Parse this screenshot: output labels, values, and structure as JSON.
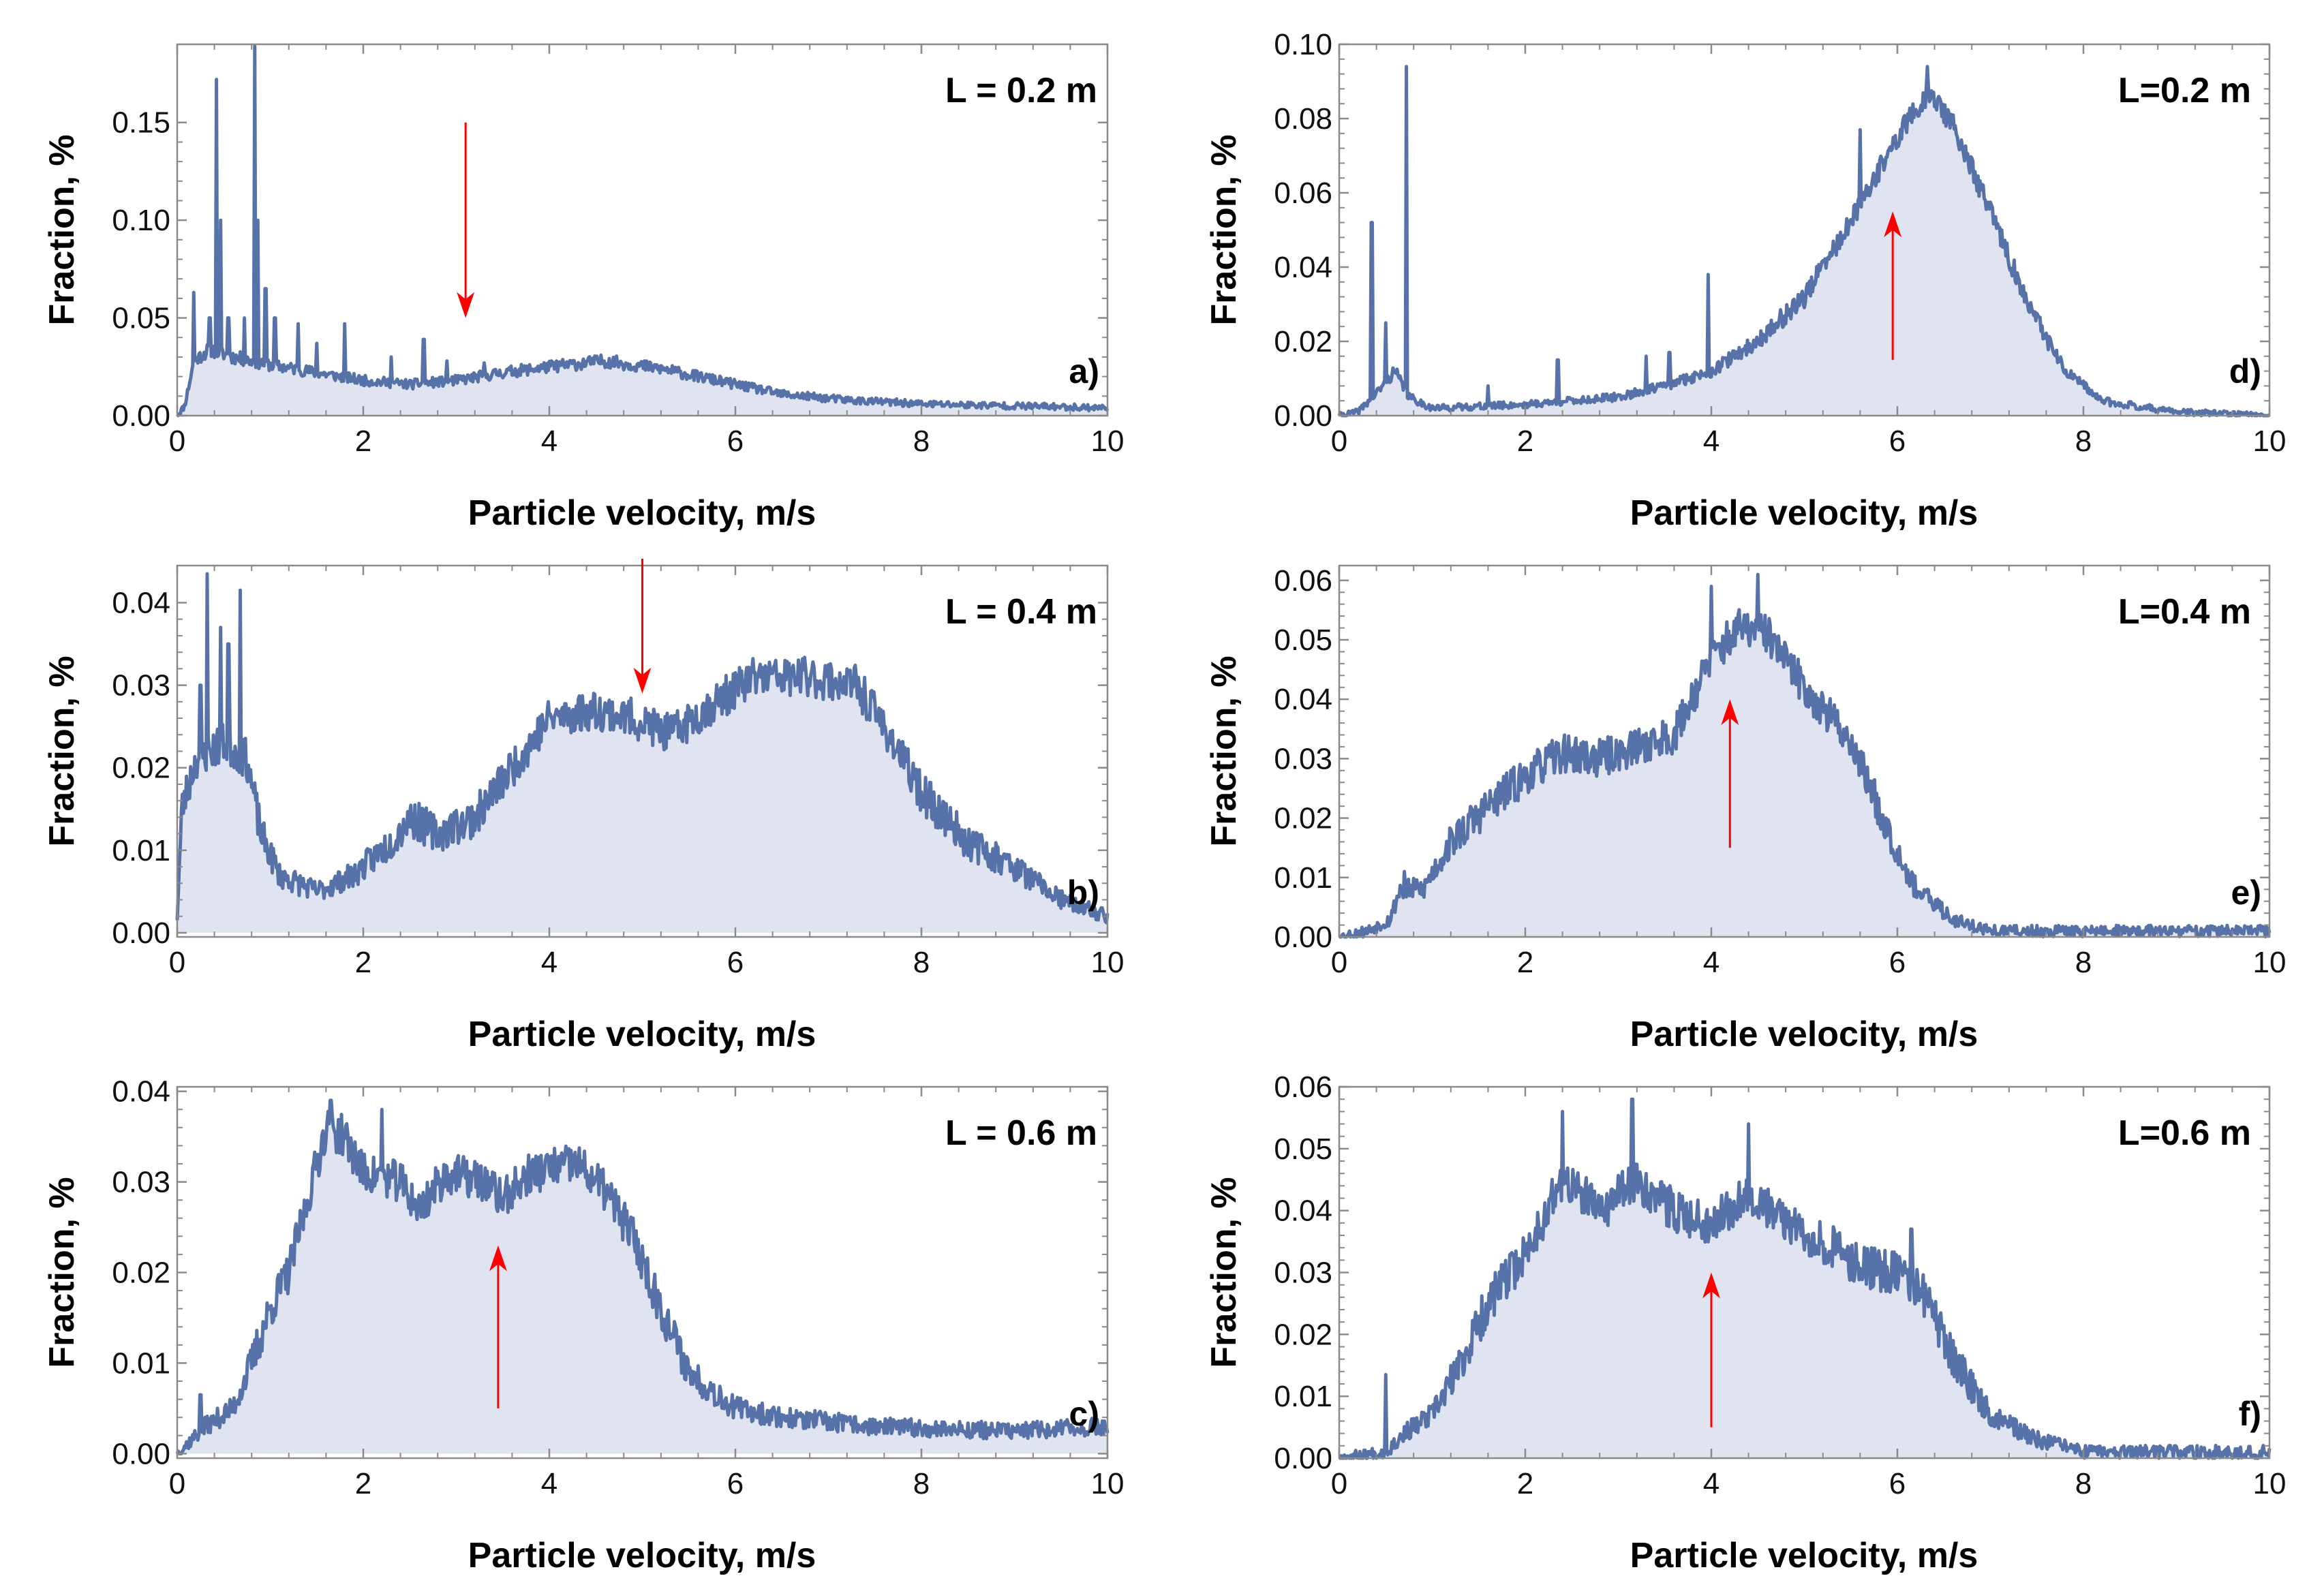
{
  "figure": {
    "description_free": true,
    "colors": {
      "line": "#5672a8",
      "fill": "#dfe4f0",
      "arrow": "#ff0000",
      "frame": "#8a8a8a"
    }
  },
  "chart_data": [
    {
      "id": "a",
      "type": "area",
      "title": "L = 0.2 m",
      "tag": "a)",
      "xlabel": "Particle velocity, m/s",
      "ylabel": "Fraction, %",
      "xlim": [
        0,
        10
      ],
      "ylim": [
        0,
        0.19
      ],
      "xticks": [
        0,
        2,
        4,
        6,
        8,
        10
      ],
      "yticks": [
        0.0,
        0.05,
        0.1,
        0.15
      ],
      "ytick_labels": [
        "0.00",
        "0.05",
        "0.10",
        "0.15"
      ],
      "arrow": {
        "x": 3.1,
        "from_y": 0.15,
        "to_y": 0.05,
        "direction": "down"
      },
      "profile": [
        [
          0,
          0
        ],
        [
          0.08,
          0.005
        ],
        [
          0.18,
          0.028
        ],
        [
          0.35,
          0.034
        ],
        [
          0.6,
          0.03
        ],
        [
          1.0,
          0.026
        ],
        [
          1.5,
          0.022
        ],
        [
          2.0,
          0.018
        ],
        [
          2.5,
          0.016
        ],
        [
          3.0,
          0.018
        ],
        [
          3.5,
          0.022
        ],
        [
          4.0,
          0.025
        ],
        [
          4.6,
          0.028
        ],
        [
          5.2,
          0.024
        ],
        [
          5.8,
          0.018
        ],
        [
          6.5,
          0.011
        ],
        [
          7.2,
          0.008
        ],
        [
          8.0,
          0.006
        ],
        [
          9.0,
          0.005
        ],
        [
          10.0,
          0.004
        ]
      ],
      "spikes": [
        [
          0.18,
          0.063
        ],
        [
          0.35,
          0.05
        ],
        [
          0.42,
          0.172
        ],
        [
          0.47,
          0.1
        ],
        [
          0.55,
          0.05
        ],
        [
          0.72,
          0.05
        ],
        [
          0.83,
          0.189
        ],
        [
          0.87,
          0.1
        ],
        [
          0.95,
          0.065
        ],
        [
          1.05,
          0.05
        ],
        [
          1.3,
          0.047
        ],
        [
          1.5,
          0.037
        ],
        [
          1.8,
          0.047
        ],
        [
          2.3,
          0.03
        ],
        [
          2.65,
          0.039
        ],
        [
          2.9,
          0.028
        ],
        [
          3.3,
          0.027
        ]
      ],
      "noise": 0.004,
      "seed": 11
    },
    {
      "id": "b",
      "type": "area",
      "title": "L = 0.4 m",
      "tag": "b)",
      "xlabel": "Particle velocity, m/s",
      "ylabel": "Fraction, %",
      "xlim": [
        0,
        10
      ],
      "ylim": [
        -0.0005,
        0.0445
      ],
      "xticks": [
        0,
        2,
        4,
        6,
        8,
        10
      ],
      "yticks": [
        0.0,
        0.01,
        0.02,
        0.03,
        0.04
      ],
      "ytick_labels": [
        "0.00",
        "0.01",
        "0.02",
        "0.03",
        "0.04"
      ],
      "arrow": {
        "x": 5.0,
        "from_y": 0.046,
        "to_y": 0.029,
        "direction": "down"
      },
      "profile": [
        [
          0,
          0.002
        ],
        [
          0.05,
          0.015
        ],
        [
          0.2,
          0.021
        ],
        [
          0.5,
          0.023
        ],
        [
          0.75,
          0.021
        ],
        [
          0.9,
          0.012
        ],
        [
          1.1,
          0.007
        ],
        [
          1.5,
          0.005
        ],
        [
          1.9,
          0.007
        ],
        [
          2.3,
          0.011
        ],
        [
          2.5,
          0.014
        ],
        [
          2.8,
          0.012
        ],
        [
          3.2,
          0.014
        ],
        [
          3.6,
          0.02
        ],
        [
          4.0,
          0.026
        ],
        [
          4.5,
          0.027
        ],
        [
          4.9,
          0.026
        ],
        [
          5.3,
          0.024
        ],
        [
          5.8,
          0.028
        ],
        [
          6.2,
          0.031
        ],
        [
          6.8,
          0.031
        ],
        [
          7.3,
          0.03
        ],
        [
          7.6,
          0.025
        ],
        [
          8.0,
          0.017
        ],
        [
          8.5,
          0.011
        ],
        [
          9.0,
          0.008
        ],
        [
          9.5,
          0.004
        ],
        [
          10.0,
          0.002
        ]
      ],
      "spikes": [
        [
          0.32,
          0.0435
        ],
        [
          0.47,
          0.037
        ],
        [
          0.55,
          0.035
        ],
        [
          0.68,
          0.0415
        ],
        [
          0.25,
          0.03
        ]
      ],
      "noise": 0.0018,
      "seed": 23
    },
    {
      "id": "c",
      "type": "area",
      "title": "L = 0.6 m",
      "tag": "c)",
      "xlabel": "Particle velocity, m/s",
      "ylabel": "Fraction, %",
      "xlim": [
        0,
        10
      ],
      "ylim": [
        -0.0005,
        0.0405
      ],
      "xticks": [
        0,
        2,
        4,
        6,
        8,
        10
      ],
      "yticks": [
        0.0,
        0.01,
        0.02,
        0.03,
        0.04
      ],
      "ytick_labels": [
        "0.00",
        "0.01",
        "0.02",
        "0.03",
        "0.04"
      ],
      "arrow": {
        "x": 3.45,
        "from_y": 0.005,
        "to_y": 0.023,
        "direction": "up"
      },
      "profile": [
        [
          0,
          0.0
        ],
        [
          0.3,
          0.003
        ],
        [
          0.6,
          0.005
        ],
        [
          0.8,
          0.01
        ],
        [
          1.0,
          0.016
        ],
        [
          1.2,
          0.02
        ],
        [
          1.4,
          0.028
        ],
        [
          1.6,
          0.036
        ],
        [
          1.8,
          0.035
        ],
        [
          2.0,
          0.031
        ],
        [
          2.4,
          0.03
        ],
        [
          2.6,
          0.027
        ],
        [
          2.9,
          0.031
        ],
        [
          3.3,
          0.03
        ],
        [
          3.5,
          0.028
        ],
        [
          3.8,
          0.031
        ],
        [
          4.3,
          0.032
        ],
        [
          4.6,
          0.029
        ],
        [
          4.9,
          0.024
        ],
        [
          5.2,
          0.016
        ],
        [
          5.5,
          0.009
        ],
        [
          6.0,
          0.005
        ],
        [
          6.5,
          0.004
        ],
        [
          7.5,
          0.003
        ],
        [
          9.0,
          0.0025
        ],
        [
          10.0,
          0.003
        ]
      ],
      "spikes": [
        [
          0.25,
          0.0065
        ],
        [
          2.2,
          0.038
        ],
        [
          1.65,
          0.039
        ]
      ],
      "noise": 0.0017,
      "seed": 37
    },
    {
      "id": "d",
      "type": "area",
      "title": "L=0.2 m",
      "tag": "d)",
      "xlabel": "Particle velocity, m/s",
      "ylabel": "Fraction, %",
      "xlim": [
        0,
        10
      ],
      "ylim": [
        0,
        0.1
      ],
      "xticks": [
        0,
        2,
        4,
        6,
        8,
        10
      ],
      "yticks": [
        0.0,
        0.02,
        0.04,
        0.06,
        0.08,
        0.1
      ],
      "ytick_labels": [
        "0.00",
        "0.02",
        "0.04",
        "0.06",
        "0.08",
        "0.10"
      ],
      "arrow": {
        "x": 5.95,
        "from_y": 0.015,
        "to_y": 0.055,
        "direction": "up"
      },
      "profile": [
        [
          0,
          0
        ],
        [
          0.2,
          0.001
        ],
        [
          0.4,
          0.006
        ],
        [
          0.6,
          0.012
        ],
        [
          0.75,
          0.005
        ],
        [
          1.0,
          0.002
        ],
        [
          2.0,
          0.003
        ],
        [
          3.0,
          0.005
        ],
        [
          3.5,
          0.008
        ],
        [
          4.0,
          0.012
        ],
        [
          4.5,
          0.02
        ],
        [
          5.0,
          0.032
        ],
        [
          5.5,
          0.052
        ],
        [
          5.8,
          0.066
        ],
        [
          6.1,
          0.079
        ],
        [
          6.35,
          0.087
        ],
        [
          6.6,
          0.078
        ],
        [
          7.0,
          0.055
        ],
        [
          7.4,
          0.03
        ],
        [
          7.8,
          0.012
        ],
        [
          8.2,
          0.004
        ],
        [
          9.0,
          0.001
        ],
        [
          10.0,
          0.0
        ]
      ],
      "spikes": [
        [
          0.35,
          0.052
        ],
        [
          0.5,
          0.025
        ],
        [
          0.72,
          0.094
        ],
        [
          1.6,
          0.008
        ],
        [
          2.35,
          0.015
        ],
        [
          3.3,
          0.016
        ],
        [
          3.55,
          0.017
        ],
        [
          3.97,
          0.038
        ],
        [
          5.6,
          0.077
        ],
        [
          6.32,
          0.094
        ]
      ],
      "noise": 0.0022,
      "seed": 41
    },
    {
      "id": "e",
      "type": "area",
      "title": "L=0.4 m",
      "tag": "e)",
      "xlabel": "Particle velocity, m/s",
      "ylabel": "Fraction, %",
      "xlim": [
        0,
        10
      ],
      "ylim": [
        0,
        0.0625
      ],
      "xticks": [
        0,
        2,
        4,
        6,
        8,
        10
      ],
      "yticks": [
        0.0,
        0.01,
        0.02,
        0.03,
        0.04,
        0.05,
        0.06
      ],
      "ytick_labels": [
        "0.00",
        "0.01",
        "0.02",
        "0.03",
        "0.04",
        "0.05",
        "0.06"
      ],
      "arrow": {
        "x": 4.2,
        "from_y": 0.015,
        "to_y": 0.04,
        "direction": "up"
      },
      "profile": [
        [
          0,
          0.0
        ],
        [
          0.3,
          0.001
        ],
        [
          0.55,
          0.003
        ],
        [
          0.65,
          0.008
        ],
        [
          0.9,
          0.008
        ],
        [
          1.2,
          0.016
        ],
        [
          1.6,
          0.022
        ],
        [
          2.0,
          0.027
        ],
        [
          2.4,
          0.031
        ],
        [
          2.8,
          0.03
        ],
        [
          3.2,
          0.032
        ],
        [
          3.6,
          0.034
        ],
        [
          4.0,
          0.047
        ],
        [
          4.3,
          0.052
        ],
        [
          4.6,
          0.051
        ],
        [
          5.0,
          0.042
        ],
        [
          5.5,
          0.033
        ],
        [
          5.9,
          0.018
        ],
        [
          6.2,
          0.008
        ],
        [
          6.6,
          0.003
        ],
        [
          7.0,
          0.001
        ],
        [
          8.0,
          0.001
        ],
        [
          10.0,
          0.001
        ]
      ],
      "spikes": [
        [
          4.0,
          0.059
        ],
        [
          4.5,
          0.061
        ],
        [
          0.7,
          0.011
        ]
      ],
      "noise": 0.0024,
      "seed": 53
    },
    {
      "id": "f",
      "type": "area",
      "title": "L=0.6 m",
      "tag": "f)",
      "xlabel": "Particle velocity, m/s",
      "ylabel": "Fraction, %",
      "xlim": [
        0,
        10
      ],
      "ylim": [
        0,
        0.06
      ],
      "xticks": [
        0,
        2,
        4,
        6,
        8,
        10
      ],
      "yticks": [
        0.0,
        0.01,
        0.02,
        0.03,
        0.04,
        0.05,
        0.06
      ],
      "ytick_labels": [
        "0.00",
        "0.01",
        "0.02",
        "0.03",
        "0.04",
        "0.05",
        "0.06"
      ],
      "arrow": {
        "x": 4.0,
        "from_y": 0.005,
        "to_y": 0.03,
        "direction": "up"
      },
      "profile": [
        [
          0,
          0.0
        ],
        [
          0.5,
          0.001
        ],
        [
          0.7,
          0.004
        ],
        [
          1.0,
          0.007
        ],
        [
          1.3,
          0.015
        ],
        [
          1.6,
          0.025
        ],
        [
          2.0,
          0.033
        ],
        [
          2.4,
          0.045
        ],
        [
          2.8,
          0.04
        ],
        [
          3.2,
          0.045
        ],
        [
          3.6,
          0.04
        ],
        [
          4.0,
          0.038
        ],
        [
          4.4,
          0.043
        ],
        [
          4.8,
          0.038
        ],
        [
          5.2,
          0.035
        ],
        [
          5.6,
          0.031
        ],
        [
          6.0,
          0.03
        ],
        [
          6.3,
          0.026
        ],
        [
          6.6,
          0.016
        ],
        [
          7.0,
          0.007
        ],
        [
          7.5,
          0.003
        ],
        [
          8.0,
          0.001
        ],
        [
          10.0,
          0.001
        ]
      ],
      "spikes": [
        [
          0.5,
          0.0135
        ],
        [
          2.4,
          0.056
        ],
        [
          3.15,
          0.058
        ],
        [
          4.4,
          0.054
        ],
        [
          6.15,
          0.037
        ]
      ],
      "noise": 0.0026,
      "seed": 67
    }
  ]
}
